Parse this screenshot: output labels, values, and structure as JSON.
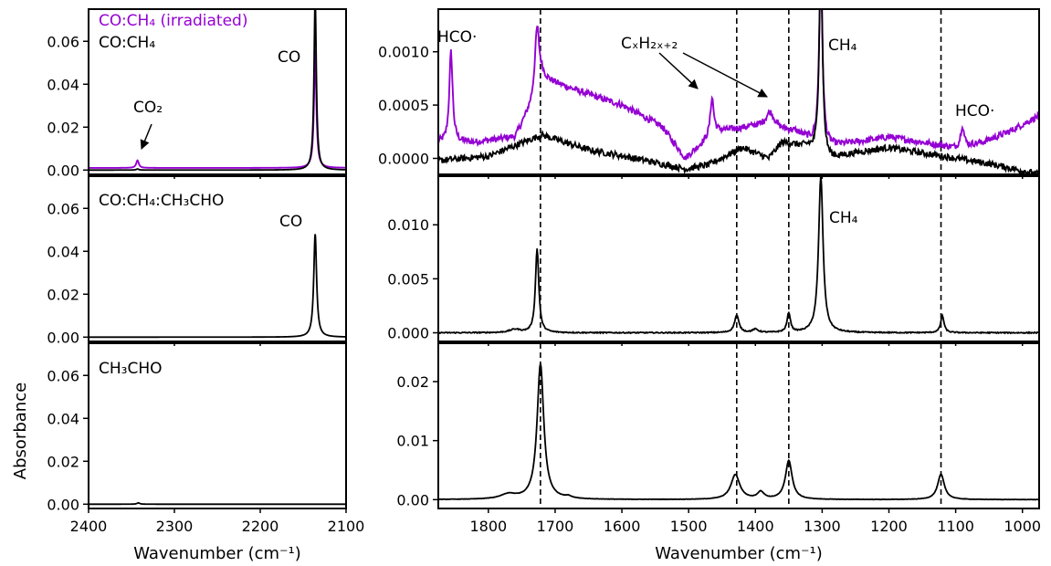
{
  "figure": {
    "ylabel": "Absorbance",
    "xlabel_left": "Wavenumber (cm⁻¹)",
    "xlabel_right": "Wavenumber (cm⁻¹)",
    "colors": {
      "irradiated": "#9400d3",
      "base": "#000000"
    }
  },
  "chart_data": [
    {
      "id": "left-top",
      "type": "line",
      "title": "",
      "xlim": [
        2400,
        2100
      ],
      "ylim": [
        -0.002,
        0.075
      ],
      "yticks": [
        0.0,
        0.02,
        0.04,
        0.06
      ],
      "ytick_labels": [
        "0.00",
        "0.02",
        "0.04",
        "0.06"
      ],
      "xticks": [],
      "xtick_labels": [],
      "legend": {
        "entries": [
          "CO:CH₄ (irradiated)",
          "CO:CH₄"
        ],
        "placement": "top-left"
      },
      "annotations": [
        "CO₂",
        "CO"
      ],
      "series": [
        {
          "name": "CO:CH₄ (irradiated)",
          "color": "#9400d3",
          "baseline": 0.001,
          "peaks": [
            {
              "x": 2343,
              "h": 0.0035,
              "w": 1.8
            },
            {
              "x": 2136,
              "h": 0.055,
              "w": 1.6
            }
          ]
        },
        {
          "name": "CO:CH₄",
          "color": "#000000",
          "baseline": 0.0,
          "peaks": [
            {
              "x": 2343,
              "h": 0.0005,
              "w": 1.8
            },
            {
              "x": 2136,
              "h": 0.08,
              "w": 1.6
            }
          ]
        }
      ]
    },
    {
      "id": "left-mid",
      "type": "line",
      "title": "",
      "xlim": [
        2400,
        2100
      ],
      "ylim": [
        -0.002,
        0.075
      ],
      "yticks": [
        0.0,
        0.02,
        0.04,
        0.06
      ],
      "ytick_labels": [
        "0.00",
        "0.02",
        "0.04",
        "0.06"
      ],
      "xticks": [],
      "xtick_labels": [],
      "legend": {
        "entries": [
          "CO:CH₄:CH₃CHO"
        ],
        "placement": "top-left"
      },
      "annotations": [
        "CO"
      ],
      "series": [
        {
          "name": "CO:CH₄:CH₃CHO",
          "color": "#000000",
          "baseline": 0.0,
          "peaks": [
            {
              "x": 2136,
              "h": 0.048,
              "w": 2.0
            }
          ]
        }
      ]
    },
    {
      "id": "left-bot",
      "type": "line",
      "title": "",
      "xlim": [
        2400,
        2100
      ],
      "ylim": [
        -0.002,
        0.075
      ],
      "yticks": [
        0.0,
        0.02,
        0.04,
        0.06
      ],
      "ytick_labels": [
        "0.00",
        "0.02",
        "0.04",
        "0.06"
      ],
      "xticks": [
        2400,
        2300,
        2200,
        2100
      ],
      "xtick_labels": [
        "2400",
        "2300",
        "2200",
        "2100"
      ],
      "legend": {
        "entries": [
          "CH₃CHO"
        ],
        "placement": "top-left"
      },
      "annotations": [],
      "series": [
        {
          "name": "CH₃CHO",
          "color": "#000000",
          "baseline": 0.0,
          "peaks": [
            {
              "x": 2342,
              "h": 0.0006,
              "w": 2.0
            }
          ]
        }
      ]
    },
    {
      "id": "right-top",
      "type": "line",
      "title": "",
      "xlim": [
        1875,
        975
      ],
      "ylim": [
        -0.00015,
        0.0014
      ],
      "yticks": [
        0.0,
        0.0005,
        0.001
      ],
      "ytick_labels": [
        "0.0000",
        "0.0005",
        "0.0010"
      ],
      "xticks": [],
      "xtick_labels": [],
      "annotations": [
        "HCO·",
        "CₓH₂ₓ₊₂",
        "CH₄",
        "HCO·"
      ],
      "vlines": [
        1722,
        1428,
        1350,
        1122
      ],
      "series": [
        {
          "name": "CO:CH₄ (irradiated)",
          "color": "#9400d3",
          "baseline_points": [
            [
              1875,
              0.00015
            ],
            [
              1820,
              0.00015
            ],
            [
              1760,
              0.0002
            ],
            [
              1735,
              0.0005
            ],
            [
              1720,
              0.00075
            ],
            [
              1650,
              0.0006
            ],
            [
              1600,
              0.0005
            ],
            [
              1540,
              0.0003
            ],
            [
              1505,
              0.0
            ],
            [
              1460,
              0.00025
            ],
            [
              1400,
              0.0003
            ],
            [
              1340,
              0.00025
            ],
            [
              1300,
              0.0001
            ],
            [
              1250,
              0.00015
            ],
            [
              1200,
              0.0002
            ],
            [
              1150,
              0.00015
            ],
            [
              1100,
              0.0001
            ],
            [
              1060,
              0.00015
            ],
            [
              1020,
              0.00025
            ],
            [
              975,
              0.0004
            ]
          ],
          "peaks": [
            {
              "x": 1856,
              "h": 0.00085,
              "w": 3
            },
            {
              "x": 1727,
              "h": 0.0006,
              "w": 4
            },
            {
              "x": 1465,
              "h": 0.00035,
              "w": 3
            },
            {
              "x": 1378,
              "h": 0.00015,
              "w": 8
            },
            {
              "x": 1302,
              "h": 0.0017,
              "w": 3
            },
            {
              "x": 1090,
              "h": 0.0002,
              "w": 3
            }
          ],
          "noise": 3e-05
        },
        {
          "name": "CO:CH₄",
          "color": "#000000",
          "baseline_points": [
            [
              1875,
              -2e-05
            ],
            [
              1800,
              2e-05
            ],
            [
              1720,
              0.00022
            ],
            [
              1650,
              8e-05
            ],
            [
              1580,
              0.0
            ],
            [
              1505,
              -0.0001
            ],
            [
              1470,
              -6e-05
            ],
            [
              1420,
              0.0001
            ],
            [
              1380,
              0.0
            ],
            [
              1360,
              0.00015
            ],
            [
              1320,
              0.0001
            ],
            [
              1300,
              -3e-05
            ],
            [
              1250,
              5e-05
            ],
            [
              1200,
              0.0001
            ],
            [
              1150,
              5e-05
            ],
            [
              1100,
              0.0
            ],
            [
              1050,
              -5e-05
            ],
            [
              975,
              -0.00015
            ]
          ],
          "peaks": [
            {
              "x": 1302,
              "h": 0.0019,
              "w": 3
            }
          ],
          "noise": 3e-05
        }
      ]
    },
    {
      "id": "right-mid",
      "type": "line",
      "title": "",
      "xlim": [
        1875,
        975
      ],
      "ylim": [
        -0.0008,
        0.0145
      ],
      "yticks": [
        0.0,
        0.005,
        0.01
      ],
      "ytick_labels": [
        "0.000",
        "0.005",
        "0.010"
      ],
      "xticks": [],
      "xtick_labels": [],
      "annotations": [
        "CH₄"
      ],
      "vlines": [
        1722,
        1428,
        1350,
        1122
      ],
      "series": [
        {
          "name": "CO:CH₄:CH₃CHO",
          "color": "#000000",
          "baseline_points": [
            [
              1875,
              0.0
            ],
            [
              975,
              0.0
            ]
          ],
          "peaks": [
            {
              "x": 1760,
              "h": 0.0003,
              "w": 10
            },
            {
              "x": 1727,
              "h": 0.0078,
              "w": 3
            },
            {
              "x": 1428,
              "h": 0.0016,
              "w": 4
            },
            {
              "x": 1400,
              "h": 0.0003,
              "w": 5
            },
            {
              "x": 1350,
              "h": 0.0018,
              "w": 3
            },
            {
              "x": 1302,
              "h": 0.0145,
              "w": 4
            },
            {
              "x": 1120,
              "h": 0.0016,
              "w": 3
            }
          ],
          "noise": 5e-05
        }
      ]
    },
    {
      "id": "right-bot",
      "type": "line",
      "title": "",
      "xlim": [
        1875,
        975
      ],
      "ylim": [
        -0.0015,
        0.0265
      ],
      "yticks": [
        0.0,
        0.01,
        0.02
      ],
      "ytick_labels": [
        "0.00",
        "0.01",
        "0.02"
      ],
      "xticks": [
        1800,
        1700,
        1600,
        1500,
        1400,
        1300,
        1200,
        1100,
        1000
      ],
      "xtick_labels": [
        "1800",
        "1700",
        "1600",
        "1500",
        "1400",
        "1300",
        "1200",
        "1100",
        "1000"
      ],
      "annotations": [],
      "vlines": [
        1722,
        1428,
        1350,
        1122
      ],
      "series": [
        {
          "name": "CH₃CHO",
          "color": "#000000",
          "baseline_points": [
            [
              1875,
              0.0
            ],
            [
              975,
              0.0
            ]
          ],
          "peaks": [
            {
              "x": 1770,
              "h": 0.0008,
              "w": 14
            },
            {
              "x": 1722,
              "h": 0.023,
              "w": 6
            },
            {
              "x": 1680,
              "h": 0.0003,
              "w": 6
            },
            {
              "x": 1430,
              "h": 0.0042,
              "w": 8
            },
            {
              "x": 1392,
              "h": 0.0012,
              "w": 6
            },
            {
              "x": 1350,
              "h": 0.0066,
              "w": 6
            },
            {
              "x": 1122,
              "h": 0.0043,
              "w": 6
            }
          ],
          "noise": 3e-05
        }
      ]
    }
  ]
}
